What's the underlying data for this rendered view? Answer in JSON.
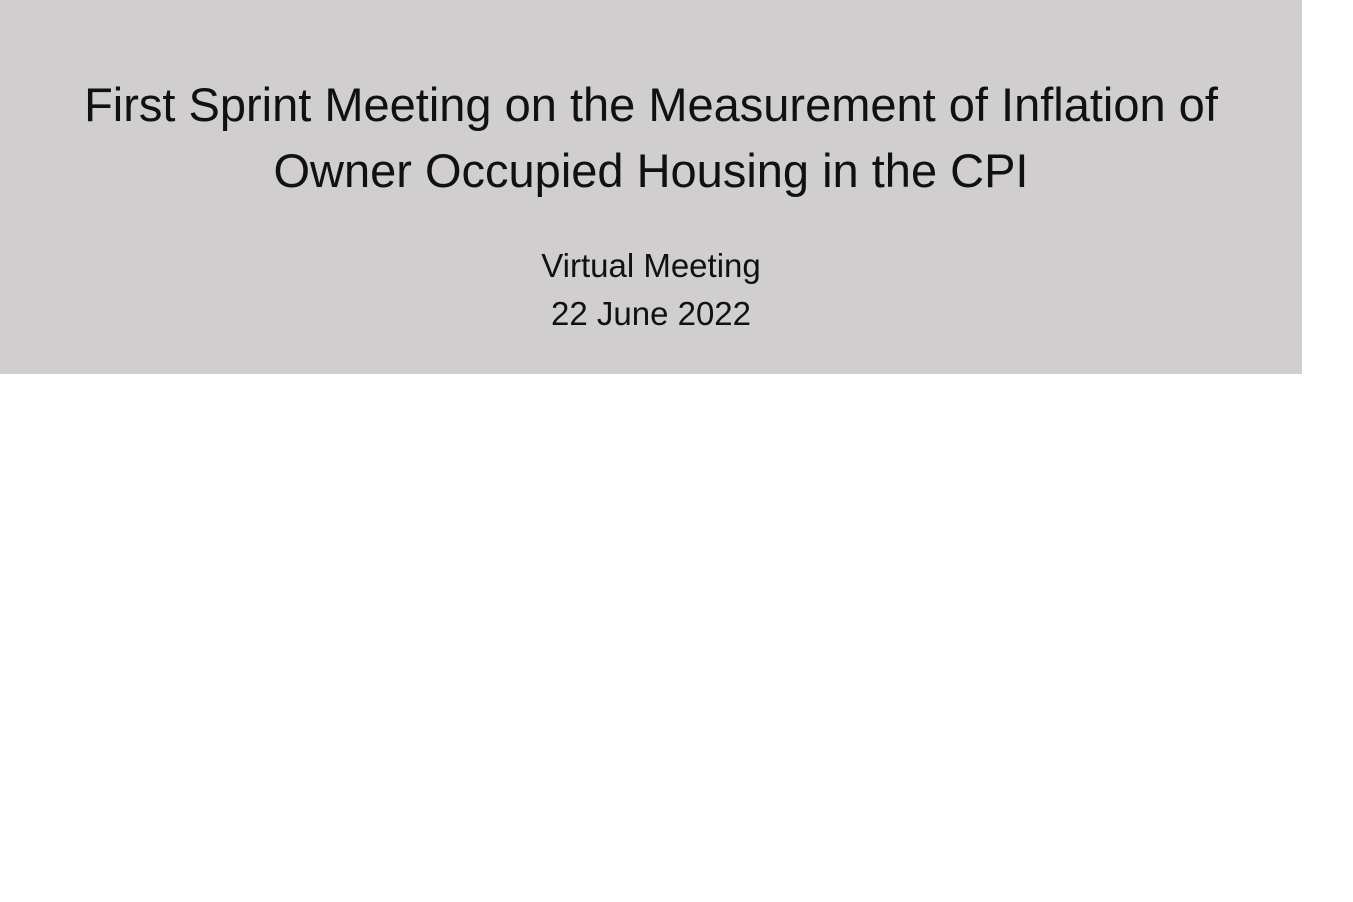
{
  "slide": {
    "title_lines": [
      "First Sprint Meeting on the Measurement of Inflation of",
      "Owner Occupied Housing in the CPI"
    ],
    "subtitle_lines": [
      "Virtual Meeting",
      "22 June 2022"
    ],
    "banner_color": "#d0cecf"
  }
}
